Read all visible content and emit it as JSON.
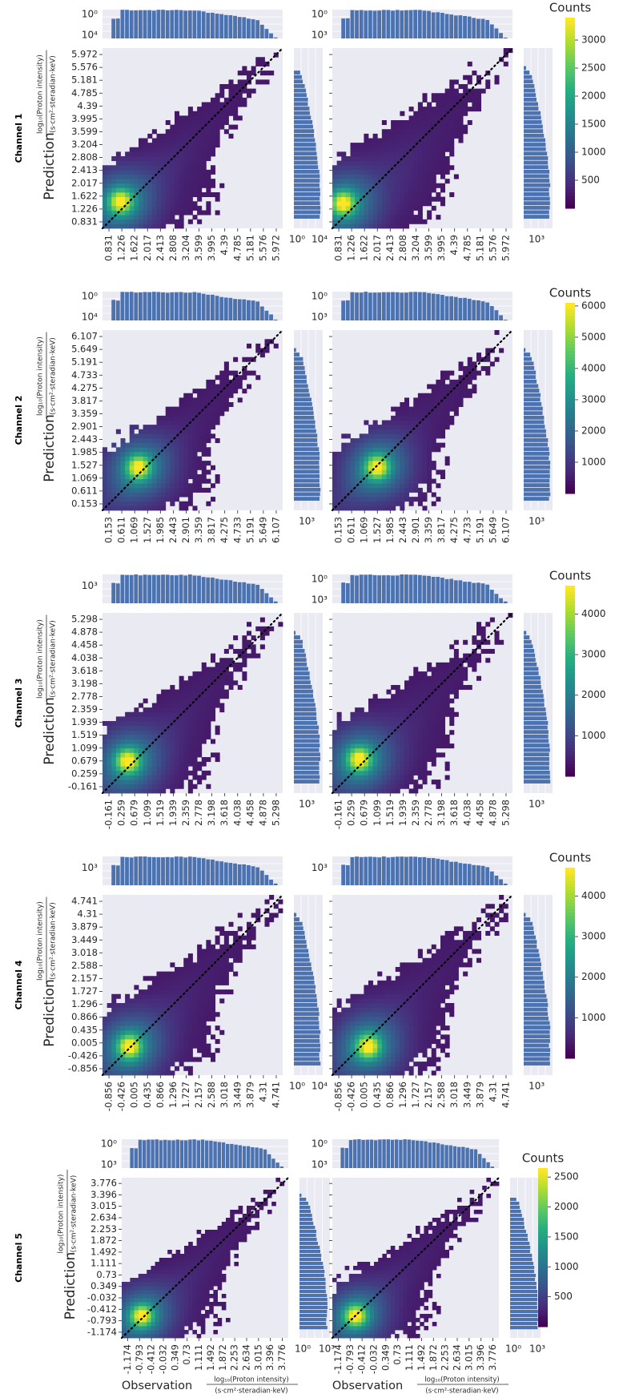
{
  "colors": {
    "panel_bg": "#eaeaf2",
    "grid": "#ffffff",
    "hist_fill": "#4c72b0",
    "diagonal": "#000000",
    "colormap": [
      "#440154",
      "#472d7b",
      "#3b528b",
      "#2c728e",
      "#21918c",
      "#28ae80",
      "#5ec962",
      "#addc30",
      "#fde725"
    ]
  },
  "labels": {
    "prediction_prefix": "Prediction",
    "observation_prefix": "Observation",
    "fraction_numerator": "log₁₀(Proton intensity)",
    "fraction_denominator_short": "(s·cm²·steradian·keV)",
    "fraction_denominator_long": "(s·cm²·steradian·keV)",
    "colorbar_title": "Counts"
  },
  "chart_data": [
    {
      "type": "heatmap",
      "channel": "Channel 1",
      "ticks": [
        "0.831",
        "1.226",
        "1.622",
        "2.017",
        "2.413",
        "2.808",
        "3.204",
        "3.599",
        "3.995",
        "4.39",
        "4.785",
        "5.181",
        "5.576",
        "5.972"
      ],
      "xlabel": "",
      "ylabel": "",
      "colorbar": {
        "title": "Counts",
        "ticks": [
          500,
          1000,
          1500,
          2000,
          2500,
          3000
        ],
        "max": 3400
      },
      "panels": [
        {
          "hot": [
            0.1,
            0.15
          ],
          "spread": 0.6,
          "topx_ticks": [
            "10⁰",
            "10⁴"
          ],
          "right_ticks": [
            "10⁰",
            "10⁴"
          ]
        },
        {
          "hot": [
            0.06,
            0.14
          ],
          "spread": 0.85,
          "topx_ticks": [
            "10⁰",
            "10³"
          ],
          "right_ticks": [
            "10³"
          ]
        }
      ]
    },
    {
      "type": "heatmap",
      "channel": "Channel 2",
      "ticks": [
        "0.153",
        "0.611",
        "1.069",
        "1.527",
        "1.985",
        "2.443",
        "2.901",
        "3.359",
        "3.817",
        "4.275",
        "4.733",
        "5.191",
        "5.649",
        "6.107"
      ],
      "xlabel": "",
      "ylabel": "",
      "colorbar": {
        "title": "Counts",
        "ticks": [
          1000,
          2000,
          3000,
          4000,
          5000,
          6000
        ],
        "max": 6100
      },
      "panels": [
        {
          "hot": [
            0.2,
            0.24
          ],
          "spread": 0.5,
          "topx_ticks": [
            "10⁰",
            "10⁴"
          ],
          "right_ticks": [
            "10³"
          ]
        },
        {
          "hot": [
            0.25,
            0.24
          ],
          "spread": 0.55,
          "topx_ticks": [
            "10⁰",
            "10³"
          ],
          "right_ticks": [
            "10³"
          ]
        }
      ]
    },
    {
      "type": "heatmap",
      "channel": "Channel 3",
      "ticks": [
        "-0.161",
        "0.259",
        "0.679",
        "1.099",
        "1.519",
        "1.939",
        "2.359",
        "2.778",
        "3.198",
        "3.618",
        "4.038",
        "4.458",
        "4.878",
        "5.298"
      ],
      "xlabel": "",
      "ylabel": "",
      "colorbar": {
        "title": "Counts",
        "ticks": [
          1000,
          2000,
          3000,
          4000
        ],
        "max": 4700
      },
      "panels": [
        {
          "hot": [
            0.14,
            0.18
          ],
          "spread": 0.65,
          "topx_ticks": [
            "10³"
          ],
          "right_ticks": [
            "10³"
          ]
        },
        {
          "hot": [
            0.15,
            0.19
          ],
          "spread": 0.8,
          "topx_ticks": [
            "10⁰",
            "10³"
          ],
          "right_ticks": [
            "10³"
          ]
        }
      ]
    },
    {
      "type": "heatmap",
      "channel": "Channel 4",
      "ticks": [
        "-0.856",
        "-0.426",
        "0.005",
        "0.435",
        "0.866",
        "1.296",
        "1.727",
        "2.157",
        "2.588",
        "3.018",
        "3.449",
        "3.879",
        "4.31",
        "4.741"
      ],
      "xlabel": "",
      "ylabel": "",
      "colorbar": {
        "title": "Counts",
        "ticks": [
          1000,
          2000,
          3000,
          4000
        ],
        "max": 4700
      },
      "panels": [
        {
          "hot": [
            0.15,
            0.16
          ],
          "spread": 0.7,
          "topx_ticks": [
            "10³"
          ],
          "right_ticks": [
            "10⁰",
            "10⁴"
          ]
        },
        {
          "hot": [
            0.2,
            0.16
          ],
          "spread": 0.75,
          "topx_ticks": [
            "10³"
          ],
          "right_ticks": [
            "10³"
          ]
        }
      ]
    },
    {
      "type": "heatmap",
      "channel": "Channel 5",
      "ticks": [
        "-1.174",
        "-0.793",
        "-0.412",
        "-0.032",
        "0.349",
        "0.73",
        "1.111",
        "1.492",
        "1.872",
        "2.253",
        "2.634",
        "3.015",
        "3.396",
        "3.776"
      ],
      "xlabel": "Observation",
      "ylabel": "Prediction",
      "colorbar": {
        "title": "Counts",
        "ticks": [
          500,
          1000,
          1500,
          2000,
          2500
        ],
        "max": 2650
      },
      "panels": [
        {
          "hot": [
            0.12,
            0.14
          ],
          "spread": 0.55,
          "topx_ticks": [
            "10⁰",
            "10³"
          ],
          "right_ticks": [
            "10⁰",
            "10³"
          ]
        },
        {
          "hot": [
            0.14,
            0.14
          ],
          "spread": 0.5,
          "topx_ticks": [
            "10⁰",
            "10³"
          ],
          "right_ticks": [
            "10⁰",
            "10³"
          ]
        }
      ]
    }
  ]
}
